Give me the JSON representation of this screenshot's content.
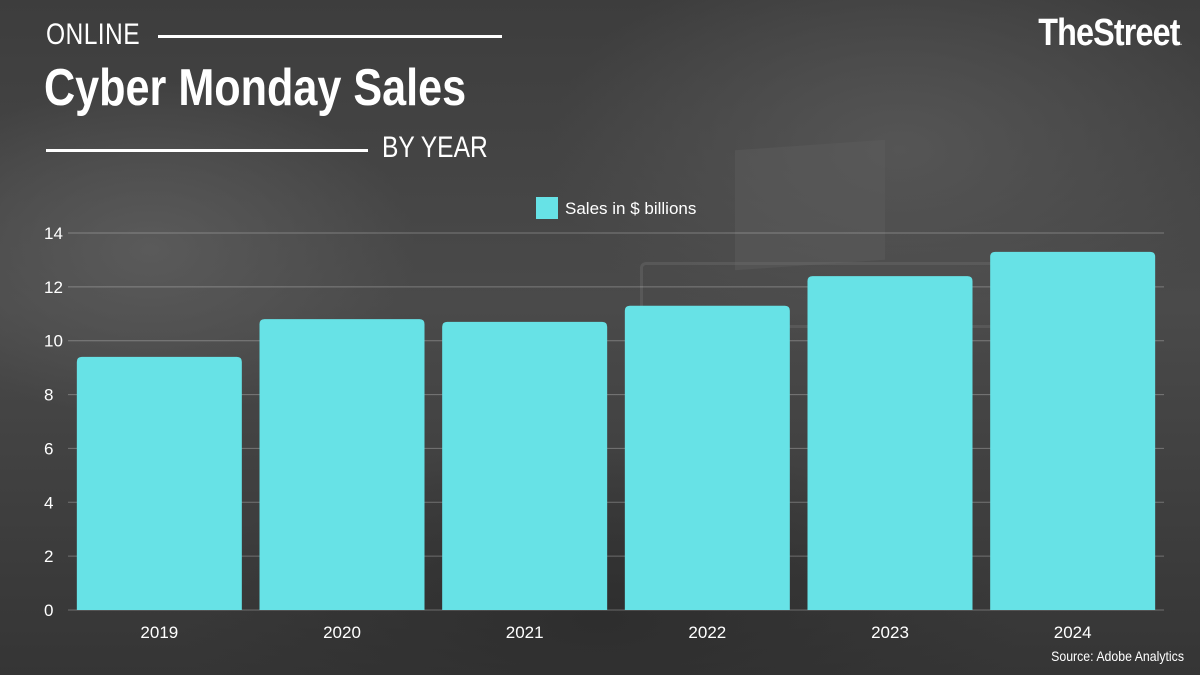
{
  "header": {
    "kicker": "ONLINE",
    "title": "Cyber Monday Sales",
    "subtitle": "BY YEAR"
  },
  "brand": {
    "logo_text": "TheStreet",
    "logo_suffix": "."
  },
  "footer": {
    "source": "Source: Adobe Analytics"
  },
  "chart_data": {
    "type": "bar",
    "categories": [
      "2019",
      "2020",
      "2021",
      "2022",
      "2023",
      "2024"
    ],
    "series": [
      {
        "name": "Sales in $ billions",
        "values": [
          9.4,
          10.8,
          10.7,
          11.3,
          12.4,
          13.3
        ],
        "color": "#67e2e6"
      }
    ],
    "ylim": [
      0,
      14
    ],
    "yticks": [
      0,
      2,
      4,
      6,
      8,
      10,
      12,
      14
    ],
    "grid": true,
    "legend": "top-center",
    "xlabel": "",
    "ylabel": ""
  }
}
